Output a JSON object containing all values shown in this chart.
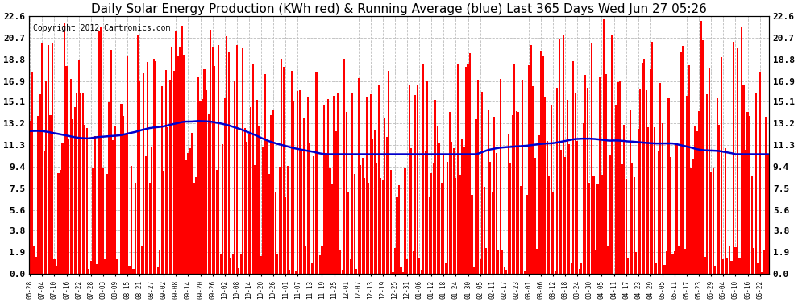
{
  "title": "Daily Solar Energy Production (KWh red) & Running Average (blue) Last 365 Days Wed Jun 27 05:26",
  "copyright": "Copyright 2012 Cartronics.com",
  "yticks": [
    0.0,
    1.9,
    3.8,
    5.6,
    7.5,
    9.4,
    11.3,
    13.2,
    15.1,
    16.9,
    18.8,
    20.7,
    22.6
  ],
  "ymax": 22.6,
  "ymin": 0.0,
  "bar_color": "#ff0000",
  "line_color": "#0000cc",
  "bg_color": "#ffffff",
  "grid_color": "#bbbbbb",
  "title_fontsize": 11,
  "copyright_fontsize": 7,
  "running_avg_target": 12.8,
  "seed": 12345,
  "x_date_labels": [
    "06-28",
    "07-04",
    "07-10",
    "07-16",
    "07-22",
    "07-28",
    "08-03",
    "08-09",
    "08-15",
    "08-21",
    "08-27",
    "09-02",
    "09-08",
    "09-14",
    "09-20",
    "09-26",
    "10-02",
    "10-08",
    "10-14",
    "10-20",
    "10-26",
    "11-01",
    "11-07",
    "11-13",
    "11-19",
    "11-25",
    "12-01",
    "12-07",
    "12-13",
    "12-19",
    "12-25",
    "12-31",
    "01-06",
    "01-12",
    "01-18",
    "01-24",
    "01-30",
    "02-05",
    "02-11",
    "02-17",
    "02-23",
    "03-01",
    "03-06",
    "03-12",
    "03-18",
    "03-24",
    "03-30",
    "04-05",
    "04-11",
    "04-17",
    "04-23",
    "04-29",
    "05-05",
    "05-11",
    "05-17",
    "05-23",
    "05-29",
    "06-04",
    "06-10",
    "06-16",
    "06-22"
  ],
  "n_days": 365
}
